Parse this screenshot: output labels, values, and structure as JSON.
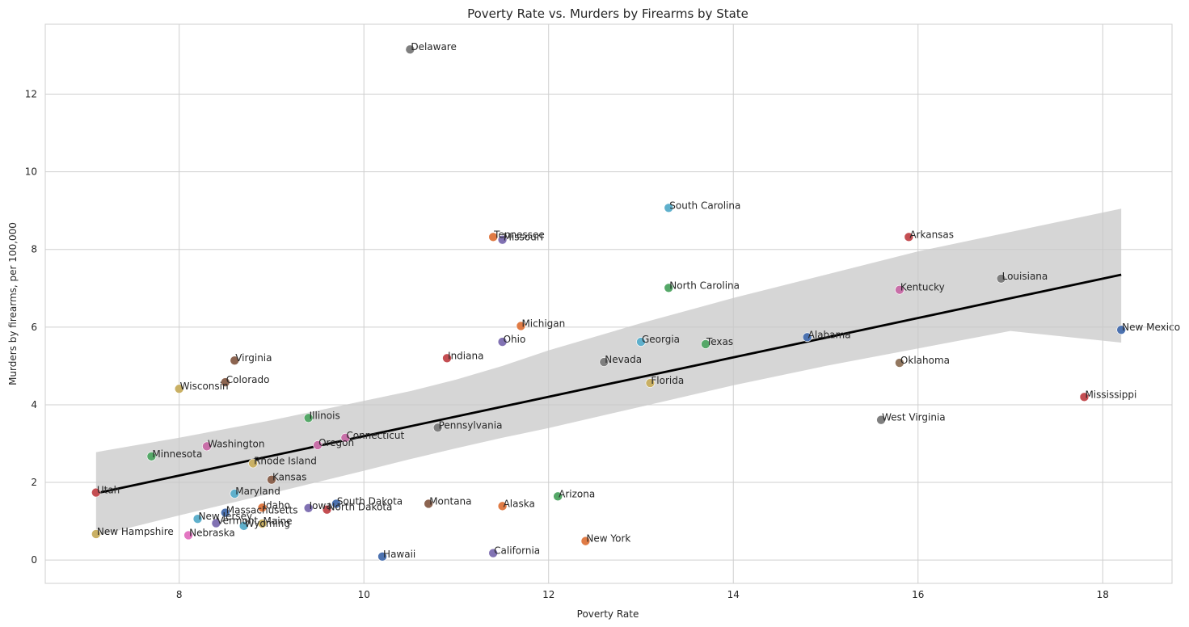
{
  "chart_data": {
    "type": "scatter",
    "title": "Poverty Rate vs. Murders by Firearms by State",
    "xlabel": "Poverty Rate",
    "ylabel": "Murders by firearms, per 100,000",
    "xlim": [
      6.55,
      18.75
    ],
    "ylim": [
      -0.6,
      13.8
    ],
    "xticks": [
      "8",
      "10",
      "12",
      "14",
      "16",
      "18"
    ],
    "yticks": [
      "0",
      "2",
      "4",
      "6",
      "8",
      "10",
      "12"
    ],
    "grid": true,
    "regression": {
      "x_start": 7.1,
      "y_start": 1.72,
      "x_end": 18.2,
      "y_end": 7.35,
      "ci_band": {
        "x": [
          7.1,
          8.0,
          9.0,
          10.0,
          10.5,
          11.0,
          11.5,
          12.0,
          13.0,
          14.0,
          15.0,
          16.0,
          17.0,
          18.2
        ],
        "upper": [
          2.78,
          3.15,
          3.6,
          4.1,
          4.35,
          4.65,
          5.0,
          5.4,
          6.1,
          6.75,
          7.35,
          7.95,
          8.45,
          9.05
        ],
        "lower": [
          0.62,
          1.15,
          1.72,
          2.3,
          2.6,
          2.88,
          3.15,
          3.4,
          3.95,
          4.5,
          5.0,
          5.45,
          5.9,
          5.6
        ]
      }
    },
    "points": [
      {
        "label": "Delaware",
        "x": 10.5,
        "y": 13.15,
        "color": "#7f7f7f"
      },
      {
        "label": "South Carolina",
        "x": 13.3,
        "y": 9.07,
        "color": "#5fb0cc"
      },
      {
        "label": "Tennessee",
        "x": 11.4,
        "y": 8.32,
        "color": "#e07b45"
      },
      {
        "label": "Missouri",
        "x": 11.5,
        "y": 8.25,
        "color": "#8172b3"
      },
      {
        "label": "Arkansas",
        "x": 15.9,
        "y": 8.32,
        "color": "#c44e52"
      },
      {
        "label": "North Carolina",
        "x": 13.3,
        "y": 7.01,
        "color": "#55a868"
      },
      {
        "label": "Louisiana",
        "x": 16.9,
        "y": 7.25,
        "color": "#7f7f7f"
      },
      {
        "label": "Kentucky",
        "x": 15.8,
        "y": 6.96,
        "color": "#c86fa8"
      },
      {
        "label": "Michigan",
        "x": 11.7,
        "y": 6.03,
        "color": "#e07b45"
      },
      {
        "label": "New Mexico",
        "x": 18.2,
        "y": 5.93,
        "color": "#4c72b0"
      },
      {
        "label": "Alabama",
        "x": 14.8,
        "y": 5.74,
        "color": "#4c72b0"
      },
      {
        "label": "Ohio",
        "x": 11.5,
        "y": 5.62,
        "color": "#8172b3"
      },
      {
        "label": "Georgia",
        "x": 13.0,
        "y": 5.62,
        "color": "#5fb0cc"
      },
      {
        "label": "Texas",
        "x": 13.7,
        "y": 5.56,
        "color": "#55a868"
      },
      {
        "label": "Indiana",
        "x": 10.9,
        "y": 5.2,
        "color": "#c44e52"
      },
      {
        "label": "Virginia",
        "x": 8.6,
        "y": 5.14,
        "color": "#8c6450"
      },
      {
        "label": "Nevada",
        "x": 12.6,
        "y": 5.1,
        "color": "#7f7f7f"
      },
      {
        "label": "Oklahoma",
        "x": 15.8,
        "y": 5.08,
        "color": "#937860"
      },
      {
        "label": "Colorado",
        "x": 8.5,
        "y": 4.58,
        "color": "#8c6450"
      },
      {
        "label": "Florida",
        "x": 13.1,
        "y": 4.56,
        "color": "#c9b064"
      },
      {
        "label": "Wisconsin",
        "x": 8.0,
        "y": 4.41,
        "color": "#c9b064"
      },
      {
        "label": "Mississippi",
        "x": 17.8,
        "y": 4.2,
        "color": "#c44e52"
      },
      {
        "label": "Illinois",
        "x": 9.4,
        "y": 3.66,
        "color": "#55a868"
      },
      {
        "label": "West Virginia",
        "x": 15.6,
        "y": 3.61,
        "color": "#7f7f7f"
      },
      {
        "label": "Pennsylvania",
        "x": 10.8,
        "y": 3.41,
        "color": "#7f7f7f"
      },
      {
        "label": "Connecticut",
        "x": 9.8,
        "y": 3.15,
        "color": "#c86fa8"
      },
      {
        "label": "Oregon",
        "x": 9.5,
        "y": 2.96,
        "color": "#c86fa8"
      },
      {
        "label": "Washington",
        "x": 8.3,
        "y": 2.93,
        "color": "#c86fa8"
      },
      {
        "label": "Minnesota",
        "x": 7.7,
        "y": 2.67,
        "color": "#55a868"
      },
      {
        "label": "Rhode Island",
        "x": 8.8,
        "y": 2.49,
        "color": "#c9b064"
      },
      {
        "label": "Kansas",
        "x": 9.0,
        "y": 2.07,
        "color": "#8c6450"
      },
      {
        "label": "Utah",
        "x": 7.1,
        "y": 1.74,
        "color": "#c44e52"
      },
      {
        "label": "Maryland",
        "x": 8.6,
        "y": 1.71,
        "color": "#5fb0cc"
      },
      {
        "label": "Arizona",
        "x": 12.1,
        "y": 1.64,
        "color": "#55a868"
      },
      {
        "label": "Montana",
        "x": 10.7,
        "y": 1.45,
        "color": "#8c6450"
      },
      {
        "label": "South Dakota",
        "x": 9.7,
        "y": 1.45,
        "color": "#4c72b0"
      },
      {
        "label": "Alaska",
        "x": 11.5,
        "y": 1.39,
        "color": "#e07b45"
      },
      {
        "label": "Idaho",
        "x": 8.9,
        "y": 1.35,
        "color": "#e07b45"
      },
      {
        "label": "Iowa",
        "x": 9.4,
        "y": 1.34,
        "color": "#8172b3"
      },
      {
        "label": "North Dakota",
        "x": 9.6,
        "y": 1.3,
        "color": "#c44e52"
      },
      {
        "label": "Massachusetts",
        "x": 8.5,
        "y": 1.22,
        "color": "#4c72b0"
      },
      {
        "label": "New Jersey",
        "x": 8.2,
        "y": 1.06,
        "color": "#5fb0cc"
      },
      {
        "label": "Vermont",
        "x": 8.4,
        "y": 0.95,
        "color": "#8172b3"
      },
      {
        "label": "Maine",
        "x": 8.9,
        "y": 0.94,
        "color": "#c9b064"
      },
      {
        "label": "Wyoming",
        "x": 8.7,
        "y": 0.88,
        "color": "#5fb0cc"
      },
      {
        "label": "New Hampshire",
        "x": 7.1,
        "y": 0.67,
        "color": "#c9b064"
      },
      {
        "label": "Nebraska",
        "x": 8.1,
        "y": 0.64,
        "color": "#e377c2"
      },
      {
        "label": "New York",
        "x": 12.4,
        "y": 0.49,
        "color": "#e07b45"
      },
      {
        "label": "California",
        "x": 11.4,
        "y": 0.18,
        "color": "#8172b3"
      },
      {
        "label": "Hawaii",
        "x": 10.2,
        "y": 0.09,
        "color": "#4c72b0"
      }
    ]
  }
}
